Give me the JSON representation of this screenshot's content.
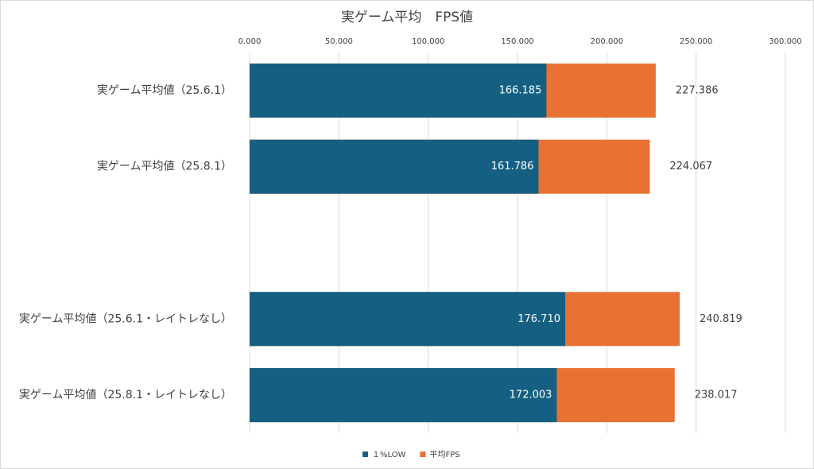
{
  "chart_data": {
    "type": "bar",
    "orientation": "horizontal",
    "overlap": true,
    "title": "実ゲーム平均　FPS値",
    "categories": [
      "実ゲーム平均値（25.6.1）",
      "実ゲーム平均値（25.8.1）",
      null,
      "実ゲーム平均値（25.6.1・レイトレなし）",
      "実ゲーム平均値（25.8.1・レイトレなし）"
    ],
    "series": [
      {
        "name": "平均FPS",
        "color": "#e97132",
        "values": [
          227.386,
          224.067,
          null,
          240.819,
          238.017
        ],
        "value_labels": [
          "227.386",
          "224.067",
          null,
          "240.819",
          "238.017"
        ]
      },
      {
        "name": "１%LOW",
        "color": "#156082",
        "values": [
          166.185,
          161.786,
          null,
          176.71,
          172.003
        ],
        "value_labels": [
          "166.185",
          "161.786",
          null,
          "176.710",
          "172.003"
        ]
      }
    ],
    "legend_order": [
      "１%LOW",
      "平均FPS"
    ],
    "xlim": [
      0,
      300
    ],
    "xticks": [
      {
        "value": 0,
        "label": "0.000"
      },
      {
        "value": 50,
        "label": "50.000"
      },
      {
        "value": 100,
        "label": "100.000"
      },
      {
        "value": 150,
        "label": "150.000"
      },
      {
        "value": 200,
        "label": "200.000"
      },
      {
        "value": 250,
        "label": "250.000"
      },
      {
        "value": 300,
        "label": "300.000"
      }
    ],
    "grid": true,
    "legend": "bottom"
  }
}
